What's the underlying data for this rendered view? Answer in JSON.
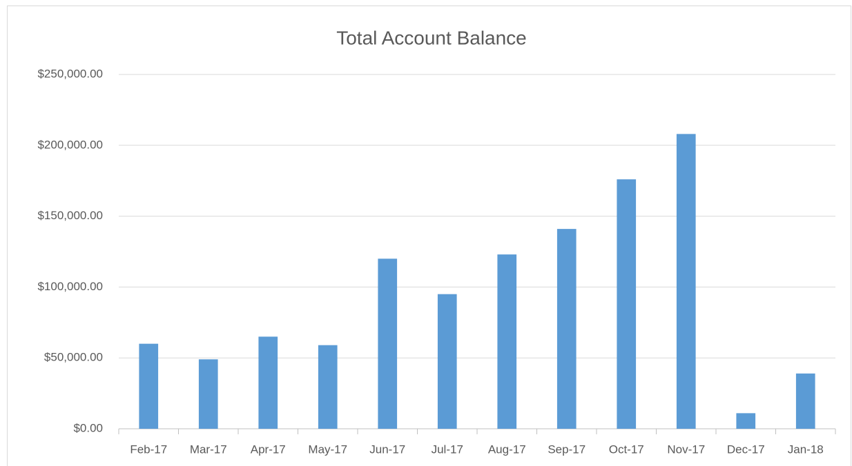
{
  "chart_data": {
    "type": "bar",
    "title": "Total Account Balance",
    "categories": [
      "Feb-17",
      "Mar-17",
      "Apr-17",
      "May-17",
      "Jun-17",
      "Jul-17",
      "Aug-17",
      "Sep-17",
      "Oct-17",
      "Nov-17",
      "Dec-17",
      "Jan-18"
    ],
    "values": [
      60000,
      49000,
      65000,
      59000,
      120000,
      95000,
      123000,
      141000,
      176000,
      208000,
      11000,
      39000
    ],
    "color": "#5b9bd5",
    "ylim": [
      0,
      250000
    ],
    "yticks": [
      {
        "value": 0,
        "label": "$0.00"
      },
      {
        "value": 50000,
        "label": "$50,000.00"
      },
      {
        "value": 100000,
        "label": "$100,000.00"
      },
      {
        "value": 150000,
        "label": "$150,000.00"
      },
      {
        "value": 200000,
        "label": "$200,000.00"
      },
      {
        "value": 250000,
        "label": "$250,000.00"
      }
    ],
    "grid": true
  }
}
